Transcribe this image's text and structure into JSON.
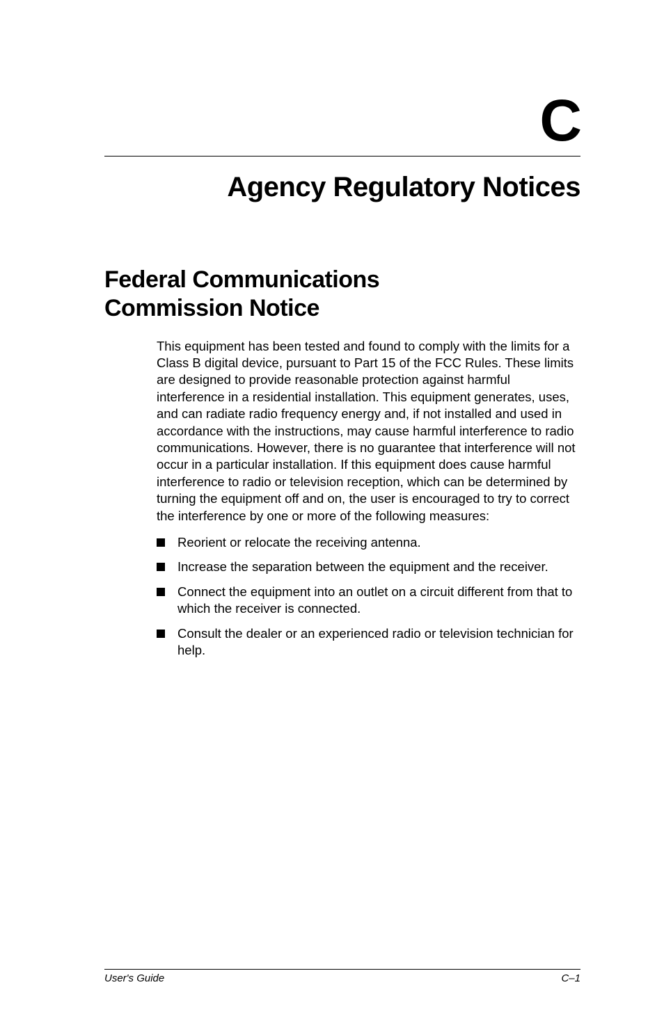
{
  "appendix": {
    "letter": "C",
    "chapter_title": "Agency Regulatory Notices"
  },
  "section": {
    "heading_line1": "Federal Communications",
    "heading_line2": "Commission Notice",
    "body": "This equipment has been tested and found to comply with the limits for a Class B digital device, pursuant to Part 15 of the FCC Rules. These limits are designed to provide reasonable protection against harmful interference in a residential installation. This equipment generates, uses, and can radiate radio frequency energy and, if not installed and used in accordance with the instructions, may cause harmful interference to radio communications. However, there is no guarantee that interference will not occur in a particular installation. If this equipment does cause harmful interference to radio or television reception, which can be determined by turning the equipment off and on, the user is encouraged to try to correct the interference by one or more of the following measures:",
    "bullets": [
      "Reorient or relocate the receiving antenna.",
      "Increase the separation between the equipment and the receiver.",
      "Connect the equipment into an outlet on a circuit different from that to which the receiver is connected.",
      "Consult the dealer or an experienced radio or television technician for help."
    ]
  },
  "footer": {
    "left": "User's Guide",
    "right": "C–1"
  },
  "style": {
    "page_bg": "#ffffff",
    "text_color": "#000000",
    "appendix_letter_fontsize": 84,
    "chapter_title_fontsize": 40,
    "section_heading_fontsize": 34,
    "body_fontsize": 18.5,
    "footer_fontsize": 15,
    "bullet_size": 12
  }
}
